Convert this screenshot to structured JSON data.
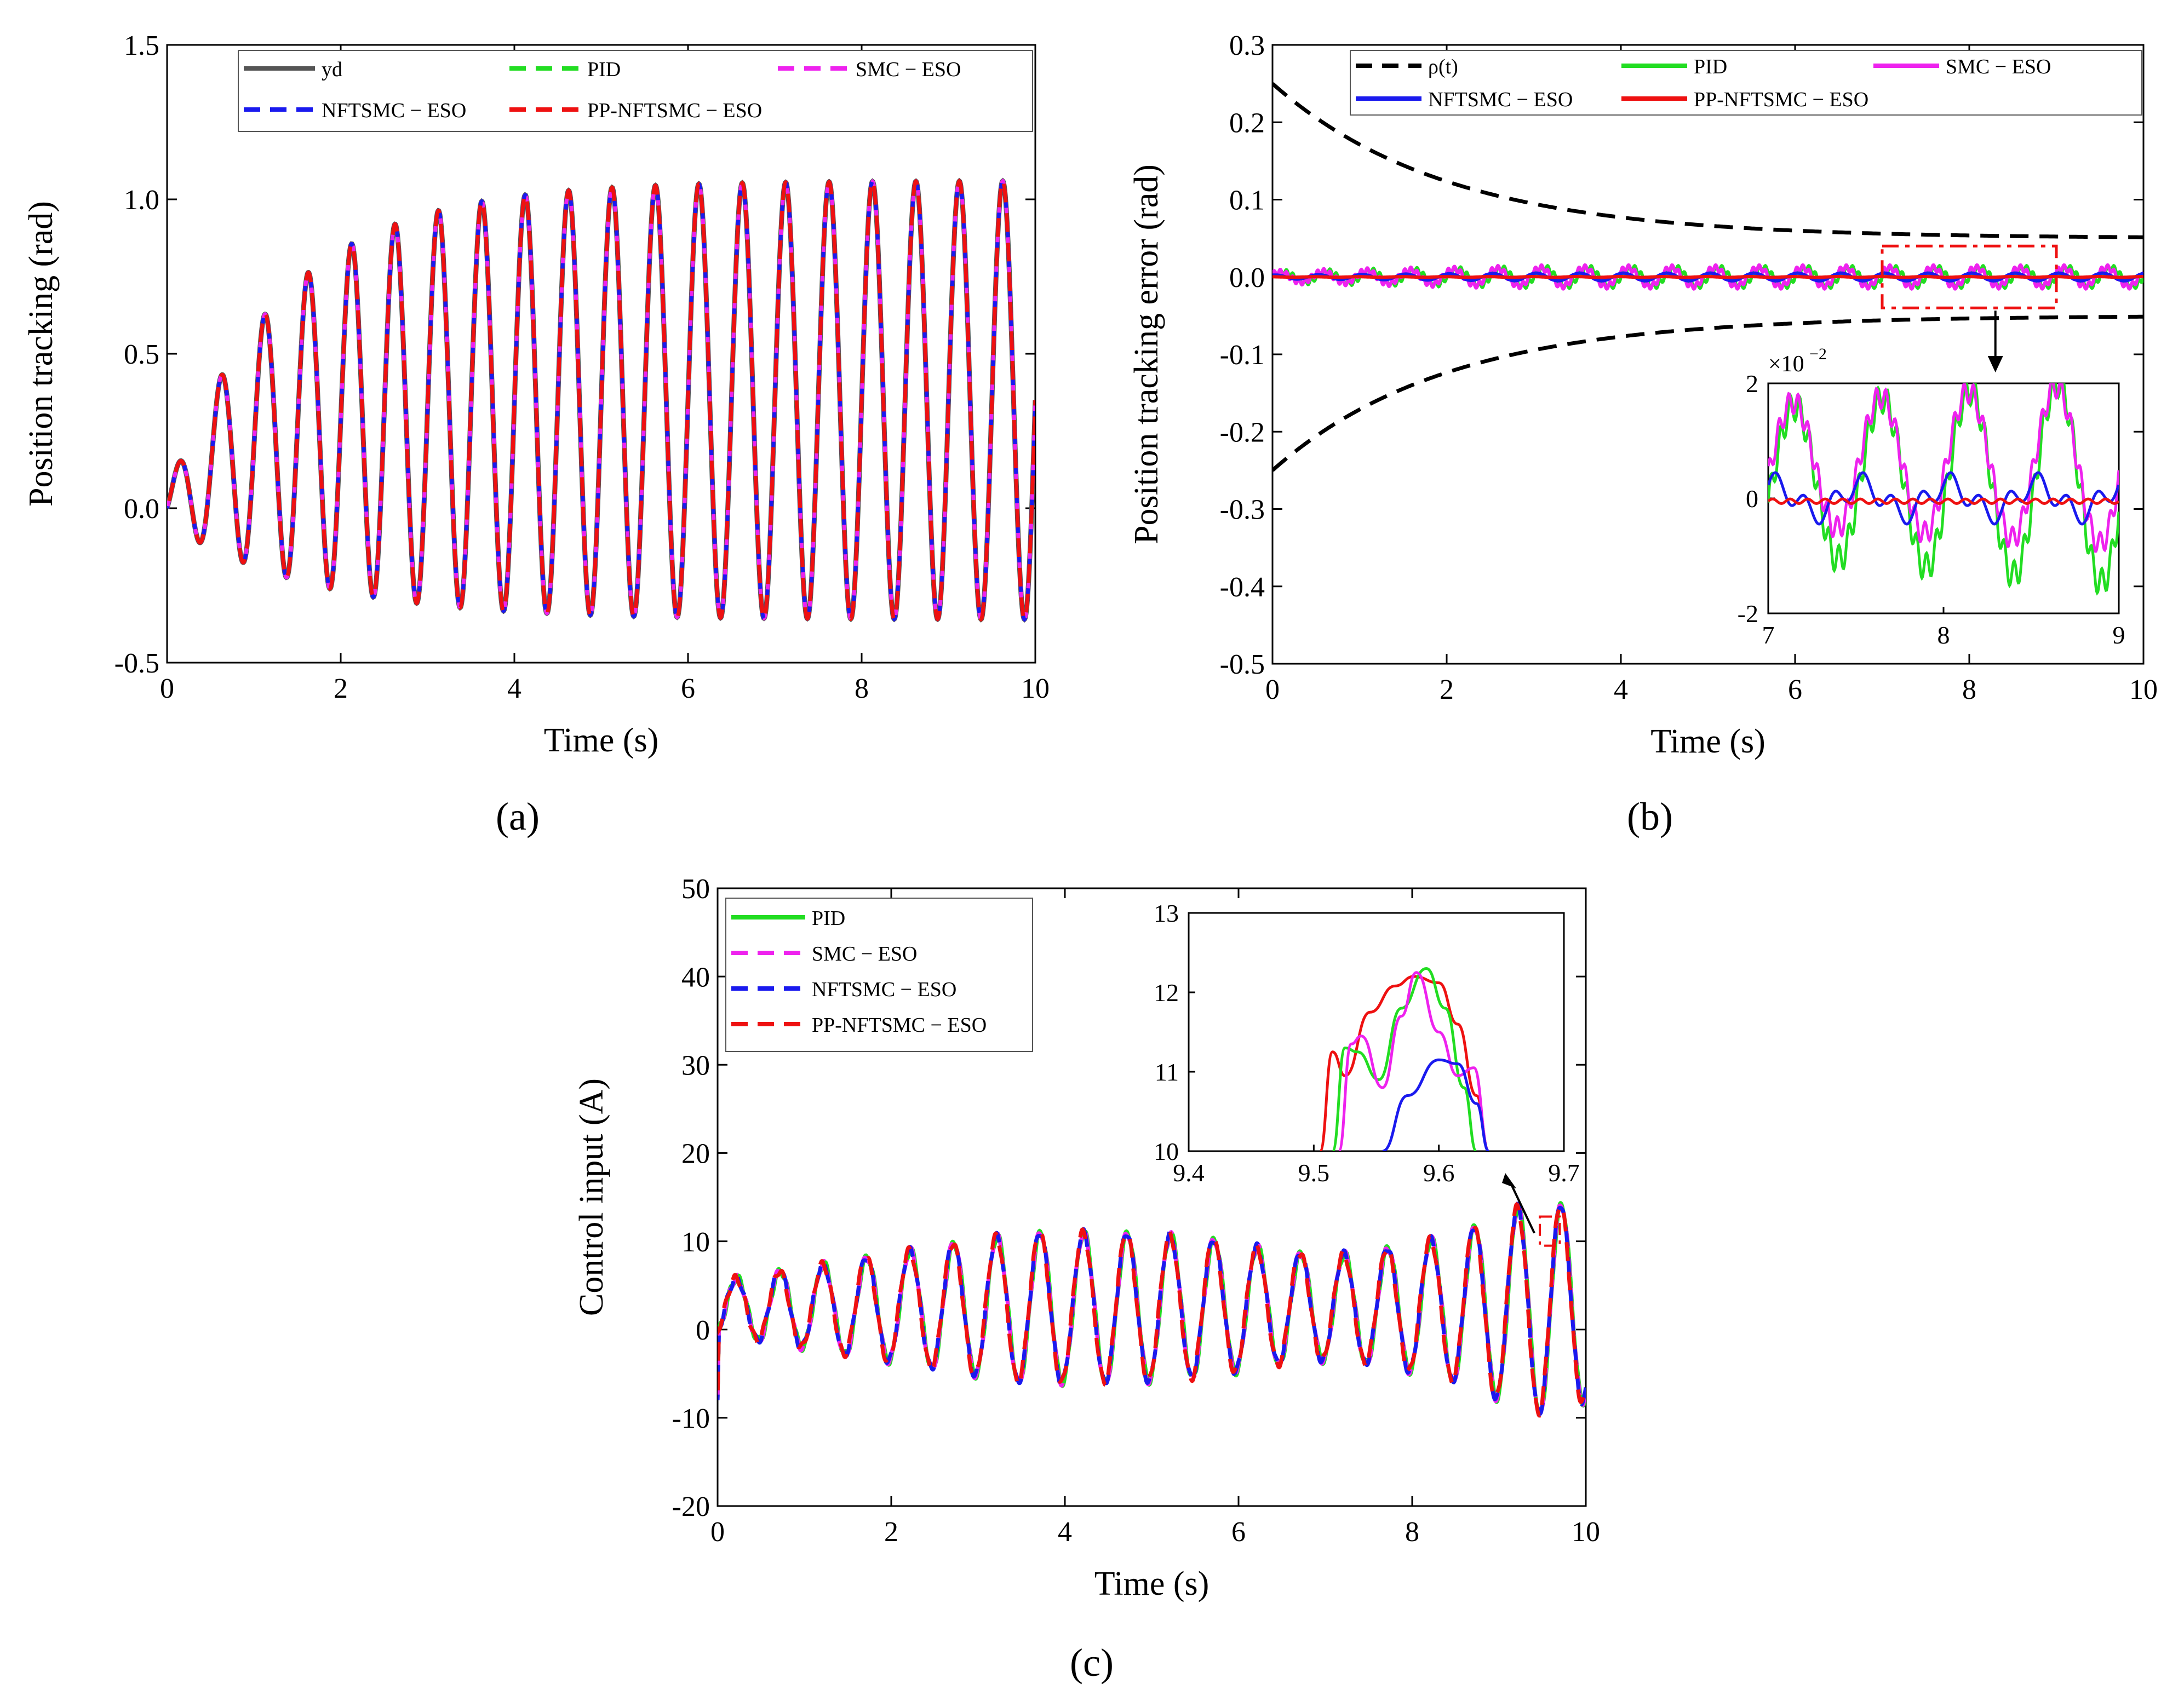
{
  "figure": {
    "captions": [
      "(a)",
      "(b)",
      "(c)"
    ]
  },
  "chart_data": [
    {
      "id": "a",
      "type": "line",
      "caption": "(a)",
      "xlabel": "Time (s)",
      "ylabel": "Position tracking (rad)",
      "xlim": [
        0,
        10
      ],
      "ylim": [
        -0.5,
        1.5
      ],
      "xticks": [
        "0",
        "2",
        "4",
        "6",
        "8",
        "10"
      ],
      "yticks": [
        "-0.5",
        "0.0",
        "0.5",
        "1.0",
        "1.5"
      ],
      "signal": {
        "freq_hz": 2.0,
        "amp_start": 0.05,
        "amp_end": 0.71,
        "amp_tau_s": 1.4,
        "offset_start": 0.0,
        "offset_end": 0.35,
        "offset_tau_s": 1.2
      },
      "series": [
        {
          "name": "y_d",
          "legend": "yd",
          "color": "#555555",
          "dash": "solid"
        },
        {
          "name": "PID",
          "legend": "PID",
          "color": "#22dd22",
          "dash": "dashed"
        },
        {
          "name": "SMC-ESO",
          "legend": "SMC − ESO",
          "color": "#ee22ee",
          "dash": "dashed"
        },
        {
          "name": "NFTSMC-ESO",
          "legend": "NFTSMC − ESO",
          "color": "#1a1aee",
          "dash": "dashed"
        },
        {
          "name": "PP-NFTSMC-ESO",
          "legend": "PP-NFTSMC − ESO",
          "color": "#ee1111",
          "dash": "dashed"
        }
      ],
      "legend_position": "top"
    },
    {
      "id": "b",
      "type": "line",
      "caption": "(b)",
      "xlabel": "Time (s)",
      "ylabel": "Position tracking error (rad)",
      "xlim": [
        0,
        10
      ],
      "ylim": [
        -0.5,
        0.3
      ],
      "xticks": [
        "0",
        "2",
        "4",
        "6",
        "8",
        "10"
      ],
      "yticks": [
        "-0.5",
        "-0.4",
        "-0.3",
        "-0.2",
        "-0.1",
        "0.0",
        "0.1",
        "0.2",
        "0.3"
      ],
      "performance_bound": {
        "name": "rho(t)",
        "legend": "ρ(t)",
        "rho0": 0.25,
        "rho_inf": 0.05,
        "decay_rate": 0.5,
        "color": "#000000",
        "dash": "dashed"
      },
      "series": [
        {
          "name": "PID",
          "legend": "PID",
          "color": "#22dd22",
          "amplitude": 0.012
        },
        {
          "name": "SMC-ESO",
          "legend": "SMC − ESO",
          "color": "#ee22ee",
          "amplitude": 0.012
        },
        {
          "name": "NFTSMC-ESO",
          "legend": "NFTSMC − ESO",
          "color": "#1a1aee",
          "amplitude": 0.005
        },
        {
          "name": "PP-NFTSMC-ESO",
          "legend": "PP-NFTSMC − ESO",
          "color": "#ee1111",
          "amplitude": 0.0005
        }
      ],
      "zoom_box": {
        "xlim": [
          7,
          9
        ],
        "ylim": [
          -0.04,
          0.04
        ]
      },
      "inset": {
        "xlim": [
          7,
          9
        ],
        "ylim": [
          -2,
          2
        ],
        "scale_label": "×10",
        "scale_exp": "−2",
        "xticks": [
          "7",
          "8",
          "9"
        ],
        "yticks": [
          "2",
          "0",
          "-2"
        ]
      },
      "legend_position": "top"
    },
    {
      "id": "c",
      "type": "line",
      "caption": "(c)",
      "xlabel": "Time (s)",
      "ylabel": "Control input (A)",
      "xlim": [
        0,
        10
      ],
      "ylim": [
        -20,
        50
      ],
      "xticks": [
        "0",
        "2",
        "4",
        "6",
        "8",
        "10"
      ],
      "yticks": [
        "-20",
        "-10",
        "0",
        "10",
        "20",
        "30",
        "40",
        "50"
      ],
      "signal": {
        "freq_hz": 2.0,
        "offset": 2.5
      },
      "series": [
        {
          "name": "PID",
          "legend": "PID",
          "color": "#22dd22",
          "dash": "solid"
        },
        {
          "name": "SMC-ESO",
          "legend": "SMC − ESO",
          "color": "#ee22ee",
          "dash": "dashed"
        },
        {
          "name": "NFTSMC-ESO",
          "legend": "NFTSMC − ESO",
          "color": "#1a1aee",
          "dash": "dashed"
        },
        {
          "name": "PP-NFTSMC-ESO",
          "legend": "PP-NFTSMC − ESO",
          "color": "#ee1111",
          "dash": "dashed"
        }
      ],
      "zoom_box": {
        "xlim": [
          9.47,
          9.7
        ],
        "ylim": [
          9.5,
          12.8
        ]
      },
      "inset": {
        "xlim": [
          9.4,
          9.7
        ],
        "ylim": [
          10,
          13
        ],
        "xticks": [
          "9.4",
          "9.5",
          "9.6",
          "9.7"
        ],
        "yticks": [
          "10",
          "11",
          "12",
          "13"
        ],
        "peaks": [
          {
            "series": "PP-NFTSMC-ESO",
            "x": [
              9.505,
              9.515,
              9.525,
              9.545,
              9.565,
              9.58,
              9.6,
              9.615,
              9.63,
              9.64
            ],
            "y": [
              10.0,
              11.25,
              10.95,
              11.75,
              12.08,
              12.2,
              12.12,
              11.6,
              10.7,
              10.0
            ]
          },
          {
            "series": "PID",
            "x": [
              9.515,
              9.525,
              9.535,
              9.552,
              9.57,
              9.59,
              9.605,
              9.62,
              9.63
            ],
            "y": [
              10.0,
              11.3,
              11.25,
              10.9,
              11.8,
              12.3,
              11.8,
              10.8,
              10.0
            ]
          },
          {
            "series": "SMC-ESO",
            "x": [
              9.52,
              9.53,
              9.538,
              9.555,
              9.57,
              9.582,
              9.6,
              9.615,
              9.628,
              9.64
            ],
            "y": [
              10.0,
              11.35,
              11.45,
              10.8,
              11.7,
              12.25,
              11.5,
              10.95,
              11.05,
              10.0
            ]
          },
          {
            "series": "NFTSMC-ESO",
            "x": [
              9.555,
              9.575,
              9.6,
              9.615,
              9.63,
              9.64
            ],
            "y": [
              10.0,
              10.7,
              11.15,
              11.1,
              10.6,
              10.0
            ]
          }
        ]
      },
      "legend_position": "top-left"
    }
  ]
}
